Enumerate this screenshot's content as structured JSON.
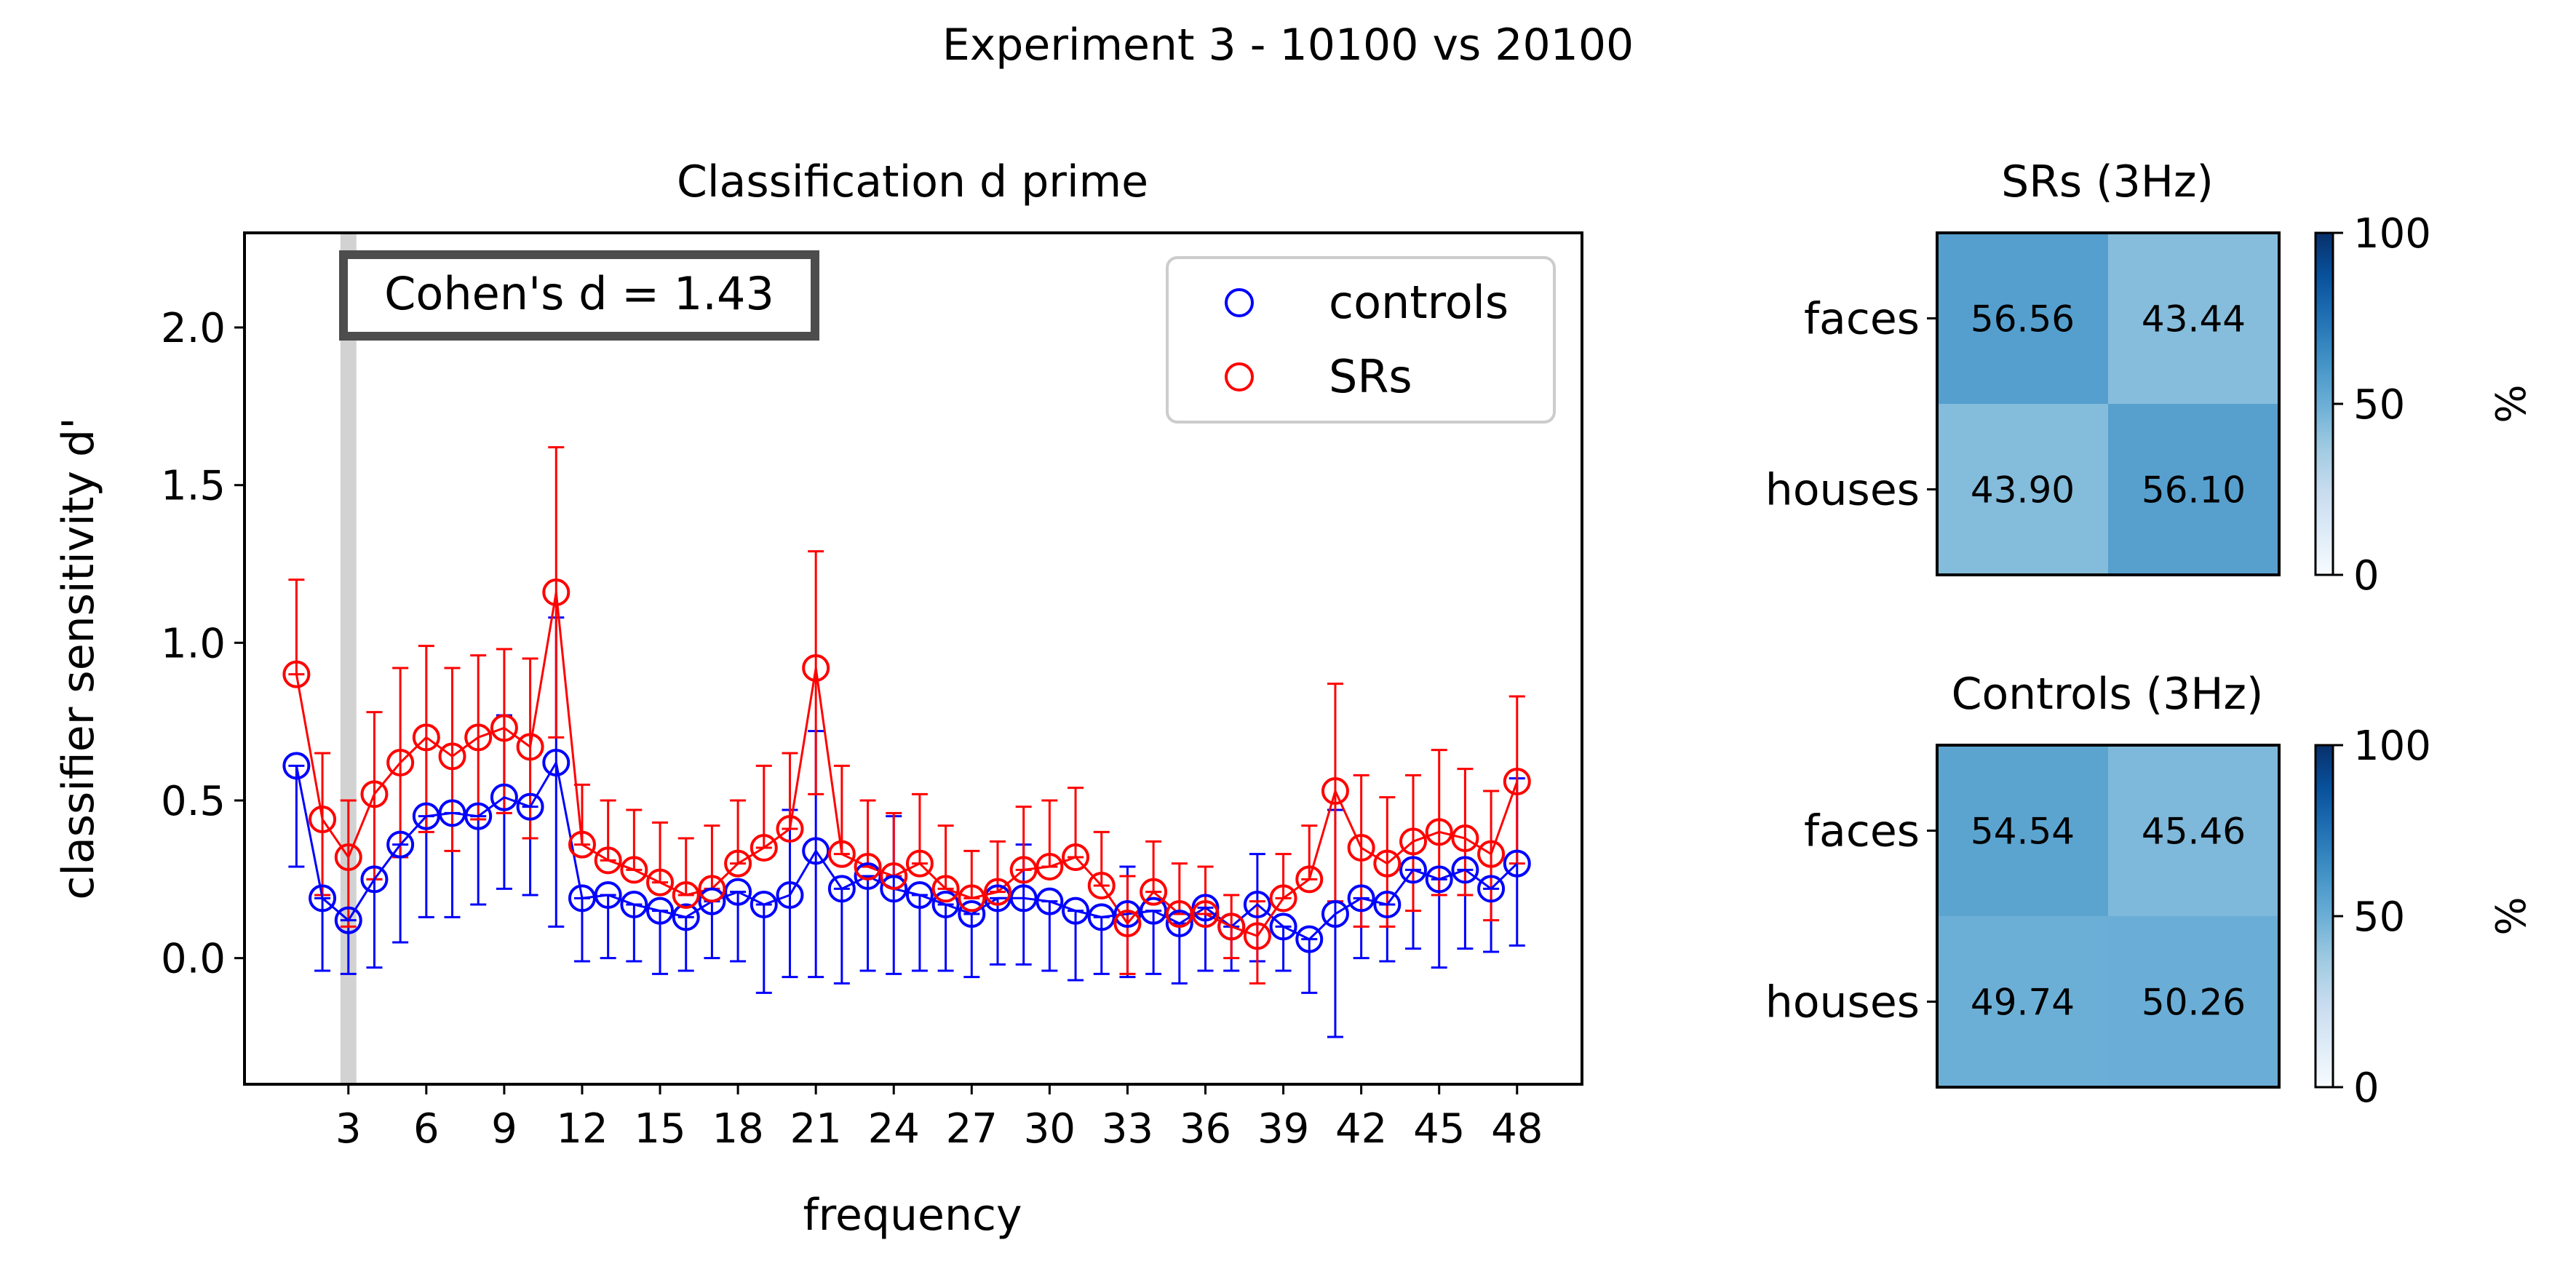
{
  "suptitle": "Experiment 3 - 10100 vs 20100",
  "chart_data": [
    {
      "type": "line",
      "title": "Classification d prime",
      "xlabel": "frequency",
      "ylabel": "classifier sensitivity d'",
      "xlim": [
        -1,
        50.5
      ],
      "ylim": [
        -0.4,
        2.3
      ],
      "xticks": [
        3,
        6,
        9,
        12,
        15,
        18,
        21,
        24,
        27,
        30,
        33,
        36,
        39,
        42,
        45,
        48
      ],
      "yticks": [
        0.0,
        0.5,
        1.0,
        1.5,
        2.0
      ],
      "ytick_labels": [
        "0.0",
        "0.5",
        "1.0",
        "1.5",
        "2.0"
      ],
      "highlight_x": 3,
      "annotation": "Cohen's d = 1.43",
      "legend_position": "upper right",
      "x": [
        1,
        2,
        3,
        4,
        5,
        6,
        7,
        8,
        9,
        10,
        11,
        12,
        13,
        14,
        15,
        16,
        17,
        18,
        19,
        20,
        21,
        22,
        23,
        24,
        25,
        26,
        27,
        28,
        29,
        30,
        31,
        32,
        33,
        34,
        35,
        36,
        37,
        38,
        39,
        40,
        41,
        42,
        43,
        44,
        45,
        46,
        47,
        48
      ],
      "series": [
        {
          "name": "controls",
          "color": "#0000ff",
          "values": [
            0.61,
            0.19,
            0.12,
            0.25,
            0.36,
            0.45,
            0.46,
            0.45,
            0.51,
            0.48,
            0.62,
            0.19,
            0.2,
            0.17,
            0.15,
            0.13,
            0.18,
            0.21,
            0.17,
            0.2,
            0.34,
            0.22,
            0.26,
            0.22,
            0.2,
            0.17,
            0.14,
            0.19,
            0.19,
            0.18,
            0.15,
            0.13,
            0.14,
            0.15,
            0.11,
            0.16,
            0.1,
            0.17,
            0.1,
            0.06,
            0.14,
            0.19,
            0.17,
            0.28,
            0.25,
            0.28,
            0.22,
            0.3
          ],
          "lower": [
            0.29,
            -0.04,
            -0.05,
            -0.03,
            0.05,
            0.13,
            0.13,
            0.17,
            0.22,
            0.2,
            0.1,
            -0.01,
            0.0,
            -0.01,
            -0.05,
            -0.04,
            0.0,
            -0.01,
            -0.11,
            -0.06,
            -0.06,
            -0.08,
            -0.04,
            -0.05,
            -0.04,
            -0.04,
            -0.06,
            -0.02,
            -0.02,
            -0.04,
            -0.07,
            -0.05,
            -0.06,
            -0.05,
            -0.08,
            -0.04,
            -0.04,
            -0.01,
            -0.04,
            -0.11,
            -0.25,
            0.0,
            -0.01,
            0.03,
            -0.03,
            0.03,
            0.02,
            0.04
          ],
          "upper": [
            0.61,
            0.19,
            0.12,
            0.25,
            0.36,
            0.45,
            0.46,
            0.45,
            0.77,
            0.48,
            1.08,
            0.19,
            0.2,
            0.17,
            0.15,
            0.13,
            0.18,
            0.21,
            0.17,
            0.47,
            0.72,
            0.22,
            0.26,
            0.45,
            0.2,
            0.17,
            0.14,
            0.19,
            0.36,
            0.18,
            0.15,
            0.13,
            0.29,
            0.15,
            0.11,
            0.16,
            0.1,
            0.33,
            0.1,
            0.06,
            0.47,
            0.19,
            0.17,
            0.28,
            0.25,
            0.28,
            0.22,
            0.57
          ]
        },
        {
          "name": "SRs",
          "color": "#ff0000",
          "values": [
            0.9,
            0.44,
            0.32,
            0.52,
            0.62,
            0.7,
            0.64,
            0.7,
            0.73,
            0.67,
            1.16,
            0.36,
            0.31,
            0.28,
            0.24,
            0.2,
            0.22,
            0.3,
            0.35,
            0.41,
            0.92,
            0.33,
            0.29,
            0.26,
            0.3,
            0.22,
            0.19,
            0.21,
            0.28,
            0.29,
            0.32,
            0.23,
            0.11,
            0.21,
            0.14,
            0.14,
            0.1,
            0.07,
            0.19,
            0.25,
            0.53,
            0.35,
            0.3,
            0.37,
            0.4,
            0.38,
            0.33,
            0.56
          ],
          "lower": [
            0.9,
            0.2,
            0.1,
            0.25,
            0.32,
            0.4,
            0.34,
            0.44,
            0.46,
            0.38,
            0.7,
            0.36,
            0.31,
            0.28,
            0.24,
            0.2,
            0.22,
            0.3,
            0.35,
            0.41,
            0.52,
            0.33,
            0.29,
            0.26,
            0.3,
            0.22,
            0.19,
            0.21,
            0.28,
            0.29,
            0.32,
            0.23,
            -0.05,
            0.21,
            0.14,
            0.14,
            0.0,
            -0.08,
            0.19,
            0.25,
            0.18,
            0.1,
            0.1,
            0.15,
            0.2,
            0.2,
            0.12,
            0.3
          ],
          "upper": [
            1.2,
            0.65,
            0.5,
            0.78,
            0.92,
            0.99,
            0.92,
            0.96,
            0.98,
            0.95,
            1.62,
            0.55,
            0.5,
            0.47,
            0.43,
            0.38,
            0.42,
            0.5,
            0.61,
            0.65,
            1.29,
            0.61,
            0.5,
            0.46,
            0.52,
            0.42,
            0.34,
            0.37,
            0.48,
            0.5,
            0.54,
            0.4,
            0.26,
            0.37,
            0.3,
            0.29,
            0.2,
            0.18,
            0.33,
            0.42,
            0.87,
            0.58,
            0.51,
            0.58,
            0.66,
            0.6,
            0.53,
            0.83
          ]
        }
      ]
    },
    {
      "type": "heatmap",
      "title": "SRs (3Hz)",
      "rows": [
        "faces",
        "houses"
      ],
      "values": [
        [
          56.56,
          43.44
        ],
        [
          43.9,
          56.1
        ]
      ],
      "value_labels": [
        [
          "56.56",
          "43.44"
        ],
        [
          "43.90",
          "56.10"
        ]
      ],
      "colorbar": {
        "min": 0,
        "max": 100,
        "ticks": [
          "0",
          "50",
          "100"
        ],
        "label": "%"
      }
    },
    {
      "type": "heatmap",
      "title": "Controls (3Hz)",
      "rows": [
        "faces",
        "houses"
      ],
      "values": [
        [
          54.54,
          45.46
        ],
        [
          49.74,
          50.26
        ]
      ],
      "value_labels": [
        [
          "54.54",
          "45.46"
        ],
        [
          "49.74",
          "50.26"
        ]
      ],
      "colorbar": {
        "min": 0,
        "max": 100,
        "ticks": [
          "0",
          "50",
          "100"
        ],
        "label": "%"
      }
    }
  ]
}
